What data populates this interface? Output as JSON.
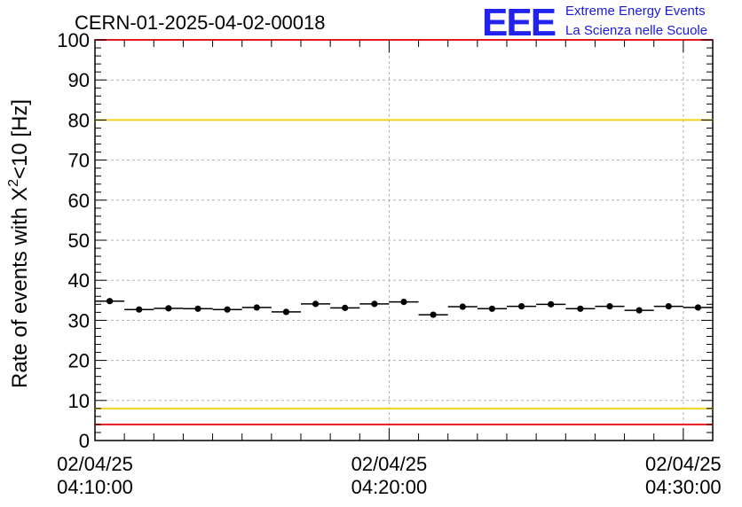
{
  "header": {
    "run_title": "CERN-01-2025-04-02-00018",
    "logo_letters": "EEE",
    "logo_line1": "Extreme Energy Events",
    "logo_line2": "La Scienza nelle Scuole",
    "logo_color": "#1a1adf"
  },
  "chart_data": {
    "type": "scatter",
    "title": "CERN-01-2025-04-02-00018",
    "ylabel": "Rate of events with",
    "ylabel_math": "X",
    "ylabel_sup": "2",
    "ylabel_suffix": "<10 [Hz]",
    "xlabel": "",
    "ylim": [
      0,
      100
    ],
    "yticks": [
      "0",
      "10",
      "20",
      "30",
      "40",
      "50",
      "60",
      "70",
      "80",
      "90",
      "100"
    ],
    "xlim_minutes": [
      0,
      21
    ],
    "xticks": [
      {
        "date": "02/04/25",
        "time": "04:10:00",
        "minute": 0
      },
      {
        "date": "02/04/25",
        "time": "04:20:00",
        "minute": 10
      },
      {
        "date": "02/04/25",
        "time": "04:30:00",
        "minute": 20
      }
    ],
    "grid": true,
    "reference_lines": [
      {
        "value": 100,
        "color": "#e8191e"
      },
      {
        "value": 80,
        "color": "#f2d21b"
      },
      {
        "value": 8,
        "color": "#f2d21b"
      },
      {
        "value": 4,
        "color": "#e8191e"
      }
    ],
    "bin_width_minutes": 1,
    "series": [
      {
        "x_minutes": [
          0.5,
          1.5,
          2.5,
          3.5,
          4.5,
          5.5,
          6.5,
          7.5,
          8.5,
          9.5,
          10.5,
          11.5,
          12.5,
          13.5,
          14.5,
          15.5,
          16.5,
          17.5,
          18.5,
          19.5,
          20.5
        ],
        "values": [
          34.8,
          32.7,
          33.0,
          32.9,
          32.7,
          33.2,
          32.1,
          34.1,
          33.1,
          34.1,
          34.6,
          31.4,
          33.4,
          32.9,
          33.5,
          34.0,
          32.9,
          33.5,
          32.5,
          33.5,
          33.2
        ],
        "color": "#000000"
      }
    ]
  }
}
